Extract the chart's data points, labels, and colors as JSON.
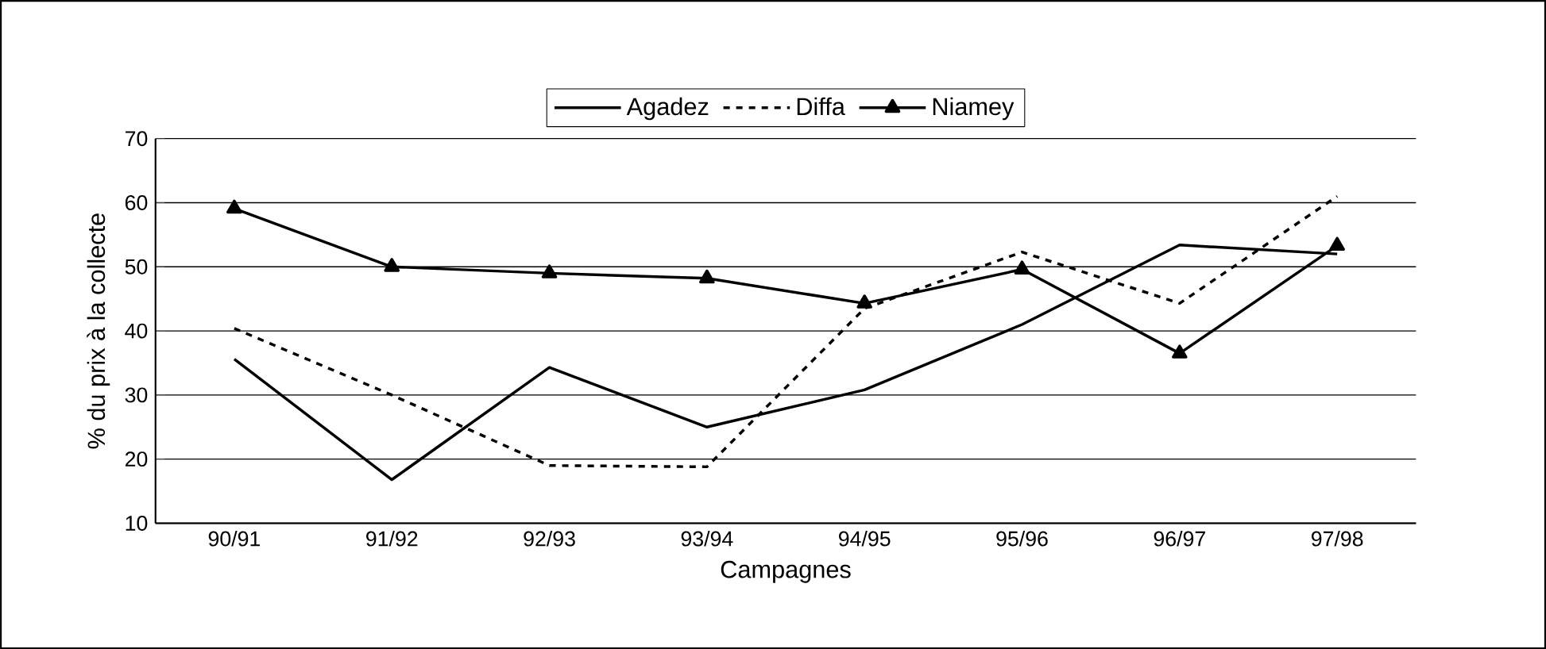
{
  "chart_data": {
    "type": "line",
    "xlabel": "Campagnes",
    "ylabel": "% du prix à la collecte",
    "categories": [
      "90/91",
      "91/92",
      "92/93",
      "93/94",
      "94/95",
      "95/96",
      "96/97",
      "97/98"
    ],
    "series": [
      {
        "name": "Agadez",
        "color": "#000000",
        "line_style": "solid",
        "marker": "none",
        "values": [
          35.6,
          16.8,
          34.3,
          25,
          30.8,
          41,
          53.4,
          52
        ]
      },
      {
        "name": "Diffa",
        "color": "#000000",
        "line_style": "dashed",
        "marker": "none",
        "values": [
          40.4,
          30,
          19,
          18.8,
          43.5,
          52.3,
          44.3,
          61
        ]
      },
      {
        "name": "Niamey",
        "color": "#000000",
        "line_style": "solid",
        "marker": "triangle",
        "values": [
          59.1,
          50,
          49,
          48.2,
          44.3,
          49.6,
          36.5,
          53.3
        ]
      }
    ],
    "ylim": [
      10,
      70
    ],
    "yticks": [
      10,
      20,
      30,
      40,
      50,
      60,
      70
    ],
    "grid": "y",
    "legend": "top"
  }
}
